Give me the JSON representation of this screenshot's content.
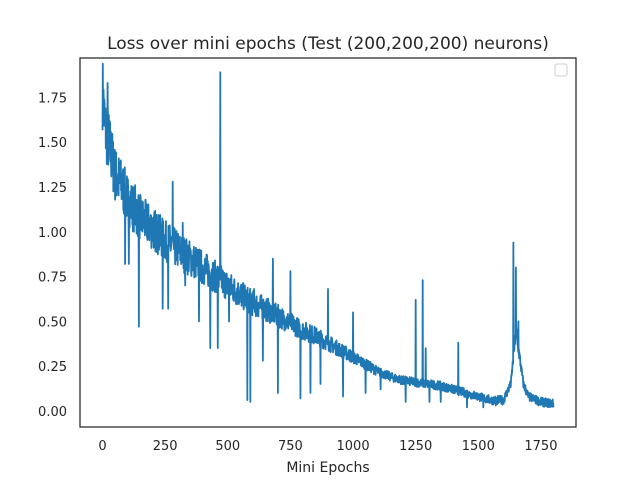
{
  "chart_data": {
    "type": "line",
    "title": "Loss over mini epochs (Test (200,200,200) neurons)",
    "xlabel": "Mini Epochs",
    "ylabel": "",
    "xlim": [
      -90,
      1890
    ],
    "ylim": [
      -0.09,
      1.97
    ],
    "xticks": [
      0,
      250,
      500,
      750,
      1000,
      1250,
      1500,
      1750
    ],
    "yticks": [
      0.0,
      0.25,
      0.5,
      0.75,
      1.0,
      1.25,
      1.5,
      1.75
    ],
    "xtick_labels": [
      "0",
      "250",
      "500",
      "750",
      "1000",
      "1250",
      "1500",
      "1750"
    ],
    "ytick_labels": [
      "0.00",
      "0.25",
      "0.50",
      "0.75",
      "1.00",
      "1.25",
      "1.50",
      "1.75"
    ],
    "grid": false,
    "legend": "top-right (empty)",
    "series": [
      {
        "color": "#1f77b4",
        "trend": [
          [
            0,
            1.78
          ],
          [
            10,
            1.58
          ],
          [
            25,
            1.5
          ],
          [
            50,
            1.32
          ],
          [
            75,
            1.26
          ],
          [
            100,
            1.18
          ],
          [
            150,
            1.08
          ],
          [
            200,
            1.02
          ],
          [
            250,
            0.95
          ],
          [
            300,
            0.9
          ],
          [
            350,
            0.85
          ],
          [
            400,
            0.8
          ],
          [
            450,
            0.75
          ],
          [
            500,
            0.7
          ],
          [
            550,
            0.65
          ],
          [
            600,
            0.6
          ],
          [
            650,
            0.57
          ],
          [
            700,
            0.53
          ],
          [
            750,
            0.49
          ],
          [
            800,
            0.45
          ],
          [
            850,
            0.42
          ],
          [
            900,
            0.38
          ],
          [
            950,
            0.34
          ],
          [
            1000,
            0.3
          ],
          [
            1050,
            0.26
          ],
          [
            1100,
            0.22
          ],
          [
            1150,
            0.19
          ],
          [
            1200,
            0.17
          ],
          [
            1250,
            0.16
          ],
          [
            1300,
            0.15
          ],
          [
            1350,
            0.14
          ],
          [
            1400,
            0.12
          ],
          [
            1450,
            0.1
          ],
          [
            1500,
            0.08
          ],
          [
            1550,
            0.06
          ],
          [
            1600,
            0.06
          ],
          [
            1630,
            0.15
          ],
          [
            1650,
            0.45
          ],
          [
            1680,
            0.15
          ],
          [
            1700,
            0.08
          ],
          [
            1750,
            0.05
          ],
          [
            1800,
            0.04
          ]
        ],
        "spikes": [
          [
            20,
            1.83
          ],
          [
            130,
            1.26
          ],
          [
            145,
            0.47
          ],
          [
            175,
            1.06
          ],
          [
            280,
            1.28
          ],
          [
            320,
            1.05
          ],
          [
            470,
            1.89
          ],
          [
            568,
            0.7
          ],
          [
            578,
            0.06
          ],
          [
            605,
            0.68
          ],
          [
            680,
            0.85
          ],
          [
            750,
            0.78
          ],
          [
            790,
            0.07
          ],
          [
            900,
            0.68
          ],
          [
            1000,
            0.55
          ],
          [
            1250,
            0.62
          ],
          [
            1278,
            0.73
          ],
          [
            1290,
            0.35
          ],
          [
            1420,
            0.38
          ],
          [
            1640,
            0.94
          ],
          [
            1650,
            0.8
          ],
          [
            1660,
            0.5
          ]
        ],
        "dips": [
          [
            90,
            0.82
          ],
          [
            105,
            0.82
          ],
          [
            240,
            0.57
          ],
          [
            262,
            0.57
          ],
          [
            330,
            0.7
          ],
          [
            385,
            0.5
          ],
          [
            430,
            0.35
          ],
          [
            460,
            0.35
          ],
          [
            505,
            0.5
          ],
          [
            590,
            0.05
          ],
          [
            640,
            0.28
          ],
          [
            700,
            0.1
          ],
          [
            830,
            0.1
          ],
          [
            870,
            0.15
          ],
          [
            960,
            0.08
          ],
          [
            1050,
            0.1
          ],
          [
            1110,
            0.12
          ],
          [
            1210,
            0.05
          ],
          [
            1305,
            0.05
          ],
          [
            1350,
            0.05
          ],
          [
            1455,
            0.02
          ],
          [
            1520,
            0.02
          ],
          [
            1570,
            0.03
          ]
        ]
      }
    ]
  }
}
